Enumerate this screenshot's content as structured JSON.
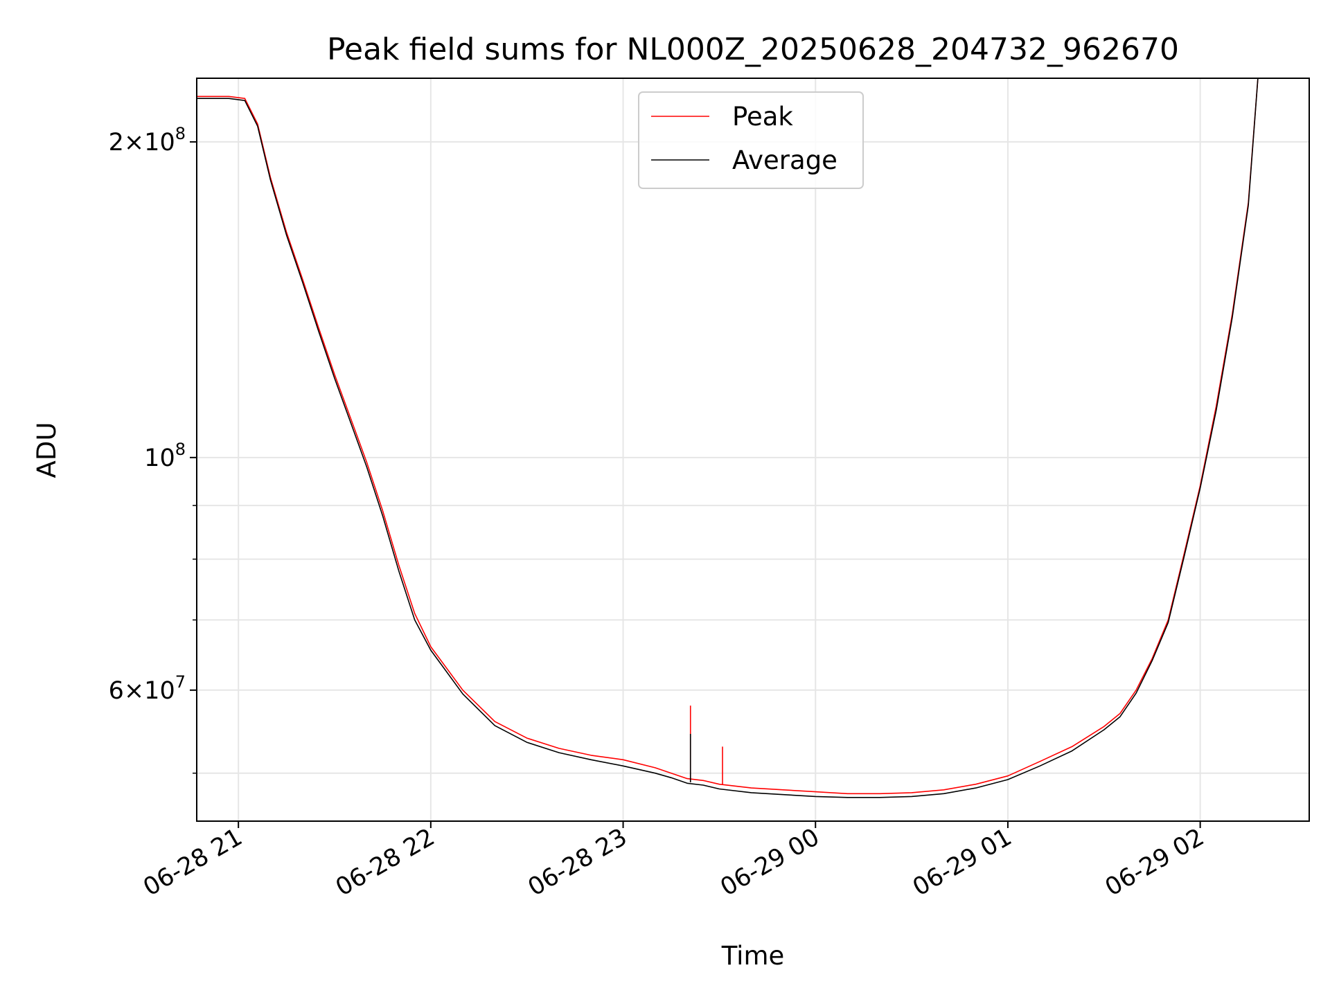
{
  "chart_data": {
    "type": "line",
    "title": "Peak field sums for NL000Z_20250628_204732_962670",
    "xlabel": "Time",
    "ylabel": "ADU",
    "yscale": "log",
    "xlim": [
      "2025-06-28 20:47",
      "2025-06-29 02:34"
    ],
    "ylim": [
      45000000,
      230000000
    ],
    "grid": true,
    "legend_position": "upper center",
    "x_ticks": [
      {
        "value": "2025-06-28 21:00",
        "label": "06-28 21"
      },
      {
        "value": "2025-06-28 22:00",
        "label": "06-28 22"
      },
      {
        "value": "2025-06-28 23:00",
        "label": "06-28 23"
      },
      {
        "value": "2025-06-29 00:00",
        "label": "06-29 00"
      },
      {
        "value": "2025-06-29 01:00",
        "label": "06-29 01"
      },
      {
        "value": "2025-06-29 02:00",
        "label": "06-29 02"
      }
    ],
    "y_major_ticks": [
      {
        "value": 200000000,
        "mantissa": "2",
        "exponent": "8"
      },
      {
        "value": 100000000,
        "mantissa": "",
        "exponent": "8"
      },
      {
        "value": 60000000,
        "mantissa": "6",
        "exponent": "7"
      }
    ],
    "y_minor_ticks": [
      50000000,
      70000000,
      80000000,
      90000000
    ],
    "series": [
      {
        "name": "Peak",
        "color": "#ff0000",
        "x": [
          "2025-06-28 20:47",
          "2025-06-28 20:52",
          "2025-06-28 20:57",
          "2025-06-28 21:02",
          "2025-06-28 21:06",
          "2025-06-28 21:10",
          "2025-06-28 21:15",
          "2025-06-28 21:20",
          "2025-06-28 21:25",
          "2025-06-28 21:30",
          "2025-06-28 21:35",
          "2025-06-28 21:40",
          "2025-06-28 21:45",
          "2025-06-28 21:50",
          "2025-06-28 21:55",
          "2025-06-28 22:00",
          "2025-06-28 22:10",
          "2025-06-28 22:20",
          "2025-06-28 22:30",
          "2025-06-28 22:40",
          "2025-06-28 22:50",
          "2025-06-28 23:00",
          "2025-06-28 23:10",
          "2025-06-28 23:15",
          "2025-06-28 23:20",
          "2025-06-28 23:25",
          "2025-06-28 23:30",
          "2025-06-28 23:40",
          "2025-06-28 23:50",
          "2025-06-29 00:00",
          "2025-06-29 00:10",
          "2025-06-29 00:20",
          "2025-06-29 00:30",
          "2025-06-29 00:40",
          "2025-06-29 00:50",
          "2025-06-29 01:00",
          "2025-06-29 01:10",
          "2025-06-29 01:20",
          "2025-06-29 01:30",
          "2025-06-29 01:35",
          "2025-06-29 01:40",
          "2025-06-29 01:45",
          "2025-06-29 01:50",
          "2025-06-29 01:55",
          "2025-06-29 02:00",
          "2025-06-29 02:05",
          "2025-06-29 02:10",
          "2025-06-29 02:15",
          "2025-06-29 02:18"
        ],
        "y": [
          221000000,
          221000000,
          221000000,
          220000000,
          208000000,
          185000000,
          164000000,
          148000000,
          133000000,
          120000000,
          109000000,
          99000000,
          89000000,
          79000000,
          71000000,
          66000000,
          60000000,
          56000000,
          54000000,
          52800000,
          52000000,
          51500000,
          50600000,
          50000000,
          49400000,
          49200000,
          48800000,
          48400000,
          48200000,
          48000000,
          47800000,
          47800000,
          47900000,
          48200000,
          48800000,
          49700000,
          51300000,
          53000000,
          55400000,
          57000000,
          60000000,
          64300000,
          70000000,
          81000000,
          94000000,
          112000000,
          137000000,
          175000000,
          230000000
        ]
      },
      {
        "name": "Average",
        "color": "#000000",
        "x": [
          "2025-06-28 20:47",
          "2025-06-28 20:52",
          "2025-06-28 20:57",
          "2025-06-28 21:02",
          "2025-06-28 21:06",
          "2025-06-28 21:10",
          "2025-06-28 21:15",
          "2025-06-28 21:20",
          "2025-06-28 21:25",
          "2025-06-28 21:30",
          "2025-06-28 21:35",
          "2025-06-28 21:40",
          "2025-06-28 21:45",
          "2025-06-28 21:50",
          "2025-06-28 21:55",
          "2025-06-28 22:00",
          "2025-06-28 22:10",
          "2025-06-28 22:20",
          "2025-06-28 22:30",
          "2025-06-28 22:40",
          "2025-06-28 22:50",
          "2025-06-28 23:00",
          "2025-06-28 23:10",
          "2025-06-28 23:15",
          "2025-06-28 23:20",
          "2025-06-28 23:25",
          "2025-06-28 23:30",
          "2025-06-28 23:40",
          "2025-06-28 23:50",
          "2025-06-29 00:00",
          "2025-06-29 00:10",
          "2025-06-29 00:20",
          "2025-06-29 00:30",
          "2025-06-29 00:40",
          "2025-06-29 00:50",
          "2025-06-29 01:00",
          "2025-06-29 01:10",
          "2025-06-29 01:20",
          "2025-06-29 01:30",
          "2025-06-29 01:35",
          "2025-06-29 01:40",
          "2025-06-29 01:45",
          "2025-06-29 01:50",
          "2025-06-29 01:55",
          "2025-06-29 02:00",
          "2025-06-29 02:05",
          "2025-06-29 02:10",
          "2025-06-29 02:15",
          "2025-06-29 02:18"
        ],
        "y": [
          220000000,
          220000000,
          220000000,
          219000000,
          207000000,
          184000000,
          163000000,
          147000000,
          132000000,
          119000000,
          108000000,
          98000000,
          88000000,
          78000000,
          70000000,
          65500000,
          59500000,
          55500000,
          53500000,
          52300000,
          51500000,
          50800000,
          50000000,
          49500000,
          48900000,
          48700000,
          48300000,
          47900000,
          47700000,
          47500000,
          47400000,
          47400000,
          47500000,
          47800000,
          48400000,
          49300000,
          50800000,
          52500000,
          55000000,
          56600000,
          59600000,
          64000000,
          69600000,
          80500000,
          93500000,
          111000000,
          136000000,
          174000000,
          230000000
        ]
      }
    ],
    "spikes": [
      {
        "series": "Peak",
        "x": "2025-06-28 23:21",
        "base": 49000000,
        "top": 58000000
      },
      {
        "series": "Average",
        "x": "2025-06-28 23:21",
        "base": 49000000,
        "top": 54500000
      },
      {
        "series": "Peak",
        "x": "2025-06-28 23:31",
        "base": 48800000,
        "top": 53000000
      }
    ]
  }
}
